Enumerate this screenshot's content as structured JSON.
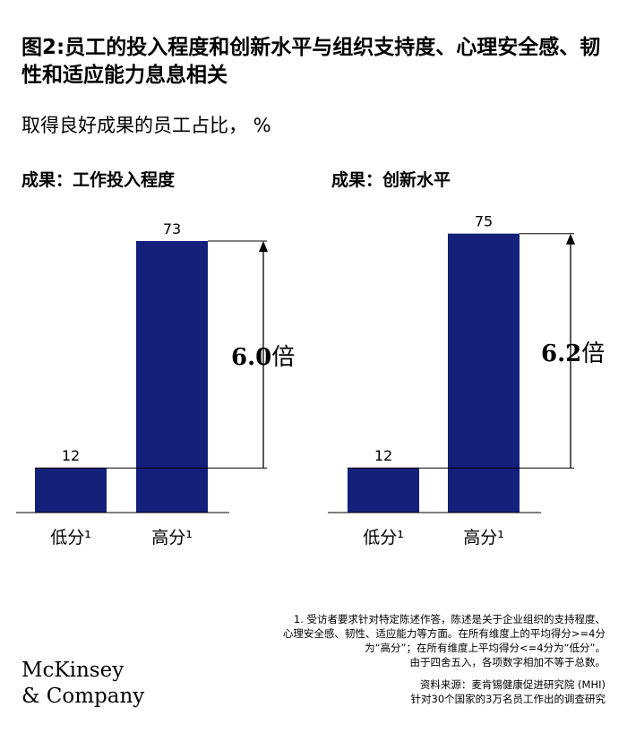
{
  "title": "图2:员工的投入程度和创新水平与组织支持度、心理安全感、韧性和适应能力息息相关",
  "subtitle": "取得良好成果的员工占比， %",
  "charts": [
    {
      "panel_title": "成果：工作投入程度",
      "ratio_value": "6.0",
      "ratio_suffix": "倍"
    },
    {
      "panel_title": "成果：创新水平",
      "ratio_value": "6.2",
      "ratio_suffix": "倍"
    }
  ],
  "chart_data": [
    {
      "type": "bar",
      "title": "成果：工作投入程度",
      "categories": [
        "低分¹",
        "高分¹"
      ],
      "values": [
        12,
        73
      ],
      "data_labels": [
        "12",
        "73"
      ],
      "annotation": "6.0倍",
      "ylim": [
        0,
        80
      ],
      "grid": false,
      "color": "#14207a"
    },
    {
      "type": "bar",
      "title": "成果：创新水平",
      "categories": [
        "低分¹",
        "高分¹"
      ],
      "values": [
        12,
        75
      ],
      "data_labels": [
        "12",
        "75"
      ],
      "annotation": "6.2倍",
      "ylim": [
        0,
        80
      ],
      "grid": false,
      "color": "#14207a"
    }
  ],
  "footnote": {
    "line1": "1.  受访者要求针对特定陈述作答，陈述是关于企业组织的支持程度、",
    "line2": "心理安全感、韧性、适应能力等方面。在所有维度上的平均得分>=4分",
    "line3": "为“高分”；在所有维度上平均得分<=4分为“低分”。",
    "line4": "由于四舍五入，各项数字相加不等于总数。"
  },
  "source": {
    "line1": "资料来源：麦肯锡健康促进研究院 (MHI)",
    "line2": "针对30个国家的3万名员工作出的调查研究"
  },
  "logo": {
    "line1": "McKinsey",
    "line2": "& Company"
  },
  "colors": {
    "bar": "#14207a",
    "text": "#000000"
  }
}
